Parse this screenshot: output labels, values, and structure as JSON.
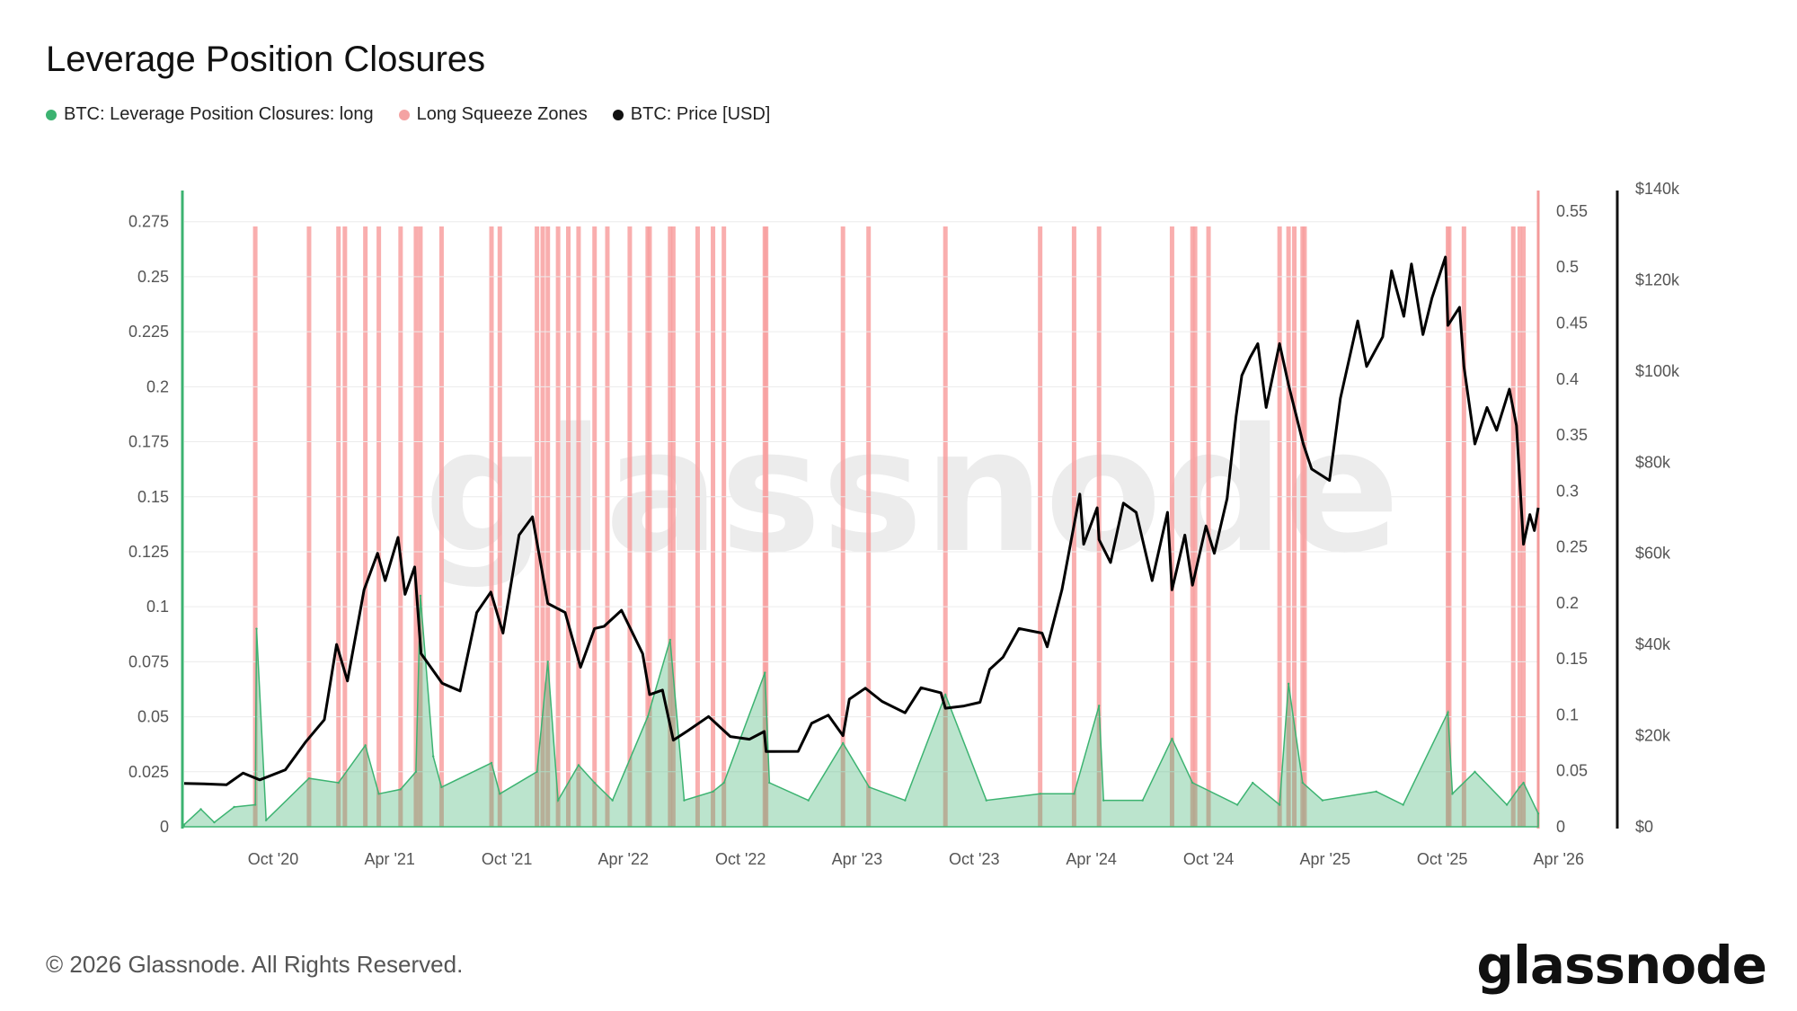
{
  "title": "Leverage Position Closures",
  "legend": [
    {
      "label": "BTC: Leverage Position Closures: long",
      "color": "#3cb371"
    },
    {
      "label": "Long Squeeze Zones",
      "color": "#f4a3a3"
    },
    {
      "label": "BTC: Price [USD]",
      "color": "#111111"
    }
  ],
  "watermark": "glassnode",
  "copyright": "© 2026 Glassnode. All Rights Reserved.",
  "brand": "glassnode",
  "colors": {
    "closures": "#3cb371",
    "squeeze": "#f8a0a0",
    "price": "#000000",
    "axis_left": "#3cb371",
    "axis_mid": "#f39a9a",
    "axis_right": "#111111"
  },
  "chart_data": {
    "type": "line",
    "x_axis": {
      "type": "date",
      "range": [
        "2020-05-15",
        "2026-02-28"
      ],
      "tick_labels": [
        "Oct '20",
        "Apr '21",
        "Oct '21",
        "Apr '22",
        "Oct '22",
        "Apr '23",
        "Oct '23",
        "Apr '24",
        "Oct '24",
        "Apr '25",
        "Oct '25",
        "Apr '26"
      ],
      "tick_dates": [
        "2020-10-01",
        "2021-04-01",
        "2021-10-01",
        "2022-04-01",
        "2022-10-01",
        "2023-04-01",
        "2023-10-01",
        "2024-04-01",
        "2024-10-01",
        "2025-04-01",
        "2025-10-01",
        "2026-04-01"
      ]
    },
    "y_left": {
      "range": [
        0,
        0.29
      ],
      "ticks": [
        "0",
        "0.025",
        "0.05",
        "0.075",
        "0.1",
        "0.125",
        "0.15",
        "0.175",
        "0.2",
        "0.225",
        "0.25",
        "0.275"
      ],
      "tick_values": [
        0,
        0.025,
        0.05,
        0.075,
        0.1,
        0.125,
        0.15,
        0.175,
        0.2,
        0.225,
        0.25,
        0.275
      ]
    },
    "y_mid": {
      "range": [
        0,
        0.57
      ],
      "ticks": [
        "0",
        "0.05",
        "0.1",
        "0.15",
        "0.2",
        "0.25",
        "0.3",
        "0.35",
        "0.4",
        "0.45",
        "0.5",
        "0.55"
      ],
      "tick_values": [
        0,
        0.05,
        0.1,
        0.15,
        0.2,
        0.25,
        0.3,
        0.35,
        0.4,
        0.45,
        0.5,
        0.55
      ]
    },
    "y_right": {
      "range": [
        0,
        140000
      ],
      "ticks": [
        "$0",
        "$20k",
        "$40k",
        "$60k",
        "$80k",
        "$100k",
        "$120k",
        "$140k"
      ],
      "tick_values": [
        0,
        20000,
        40000,
        60000,
        80000,
        100000,
        120000,
        140000
      ]
    },
    "series": [
      {
        "name": "BTC: Leverage Position Closures: long",
        "axis": "left",
        "style": "area",
        "points": [
          [
            "2020-05-15",
            0.001
          ],
          [
            "2020-06-10",
            0.008
          ],
          [
            "2020-07-01",
            0.002
          ],
          [
            "2020-08-01",
            0.009
          ],
          [
            "2020-09-03",
            0.01
          ],
          [
            "2020-09-05",
            0.09
          ],
          [
            "2020-09-20",
            0.003
          ],
          [
            "2020-11-26",
            0.022
          ],
          [
            "2021-01-11",
            0.02
          ],
          [
            "2021-02-22",
            0.037
          ],
          [
            "2021-03-15",
            0.015
          ],
          [
            "2021-04-18",
            0.017
          ],
          [
            "2021-05-12",
            0.025
          ],
          [
            "2021-05-19",
            0.105
          ],
          [
            "2021-06-08",
            0.032
          ],
          [
            "2021-06-21",
            0.018
          ],
          [
            "2021-09-07",
            0.029
          ],
          [
            "2021-09-20",
            0.015
          ],
          [
            "2021-11-17",
            0.025
          ],
          [
            "2021-12-04",
            0.075
          ],
          [
            "2021-12-20",
            0.012
          ],
          [
            "2022-01-21",
            0.028
          ],
          [
            "2022-02-15",
            0.02
          ],
          [
            "2022-03-15",
            0.012
          ],
          [
            "2022-05-09",
            0.05
          ],
          [
            "2022-06-13",
            0.085
          ],
          [
            "2022-07-05",
            0.012
          ],
          [
            "2022-08-19",
            0.016
          ],
          [
            "2022-09-05",
            0.02
          ],
          [
            "2022-11-08",
            0.07
          ],
          [
            "2022-11-15",
            0.02
          ],
          [
            "2023-01-15",
            0.012
          ],
          [
            "2023-03-10",
            0.038
          ],
          [
            "2023-04-20",
            0.018
          ],
          [
            "2023-06-15",
            0.012
          ],
          [
            "2023-08-17",
            0.06
          ],
          [
            "2023-10-20",
            0.012
          ],
          [
            "2024-01-12",
            0.015
          ],
          [
            "2024-03-05",
            0.015
          ],
          [
            "2024-04-13",
            0.055
          ],
          [
            "2024-04-20",
            0.012
          ],
          [
            "2024-06-20",
            0.012
          ],
          [
            "2024-08-05",
            0.04
          ],
          [
            "2024-09-06",
            0.02
          ],
          [
            "2024-11-15",
            0.01
          ],
          [
            "2024-12-09",
            0.02
          ],
          [
            "2025-01-20",
            0.01
          ],
          [
            "2025-02-03",
            0.065
          ],
          [
            "2025-02-25",
            0.02
          ],
          [
            "2025-03-28",
            0.012
          ],
          [
            "2025-06-20",
            0.016
          ],
          [
            "2025-08-01",
            0.01
          ],
          [
            "2025-10-10",
            0.052
          ],
          [
            "2025-10-17",
            0.015
          ],
          [
            "2025-11-21",
            0.025
          ],
          [
            "2026-01-10",
            0.01
          ],
          [
            "2026-01-30",
            0.018
          ],
          [
            "2026-02-05",
            0.02
          ],
          [
            "2026-02-28",
            0.006
          ]
        ]
      },
      {
        "name": "BTC: Price [USD]",
        "axis": "right",
        "style": "line",
        "points": [
          [
            "2020-05-15",
            9500
          ],
          [
            "2020-06-15",
            9400
          ],
          [
            "2020-07-20",
            9200
          ],
          [
            "2020-08-15",
            11800
          ],
          [
            "2020-09-10",
            10300
          ],
          [
            "2020-10-20",
            12500
          ],
          [
            "2020-11-20",
            18500
          ],
          [
            "2020-12-20",
            23500
          ],
          [
            "2021-01-08",
            40000
          ],
          [
            "2021-01-25",
            32000
          ],
          [
            "2021-02-20",
            52000
          ],
          [
            "2021-03-13",
            60000
          ],
          [
            "2021-03-25",
            54000
          ],
          [
            "2021-04-14",
            63500
          ],
          [
            "2021-04-25",
            51000
          ],
          [
            "2021-05-10",
            57000
          ],
          [
            "2021-05-20",
            38000
          ],
          [
            "2021-06-22",
            31500
          ],
          [
            "2021-07-20",
            29800
          ],
          [
            "2021-08-15",
            47000
          ],
          [
            "2021-09-06",
            51500
          ],
          [
            "2021-09-25",
            42500
          ],
          [
            "2021-10-20",
            64000
          ],
          [
            "2021-11-10",
            68000
          ],
          [
            "2021-12-04",
            49000
          ],
          [
            "2021-12-31",
            47000
          ],
          [
            "2022-01-24",
            35000
          ],
          [
            "2022-02-15",
            43500
          ],
          [
            "2022-03-02",
            44000
          ],
          [
            "2022-03-29",
            47500
          ],
          [
            "2022-05-01",
            38000
          ],
          [
            "2022-05-12",
            29000
          ],
          [
            "2022-06-01",
            30000
          ],
          [
            "2022-06-18",
            19000
          ],
          [
            "2022-07-10",
            21000
          ],
          [
            "2022-08-12",
            24200
          ],
          [
            "2022-09-15",
            19800
          ],
          [
            "2022-10-15",
            19200
          ],
          [
            "2022-11-07",
            20900
          ],
          [
            "2022-11-10",
            16500
          ],
          [
            "2022-12-30",
            16550
          ],
          [
            "2023-01-20",
            22700
          ],
          [
            "2023-02-15",
            24500
          ],
          [
            "2023-03-10",
            20000
          ],
          [
            "2023-03-20",
            28000
          ],
          [
            "2023-04-14",
            30400
          ],
          [
            "2023-05-10",
            27500
          ],
          [
            "2023-06-15",
            25000
          ],
          [
            "2023-07-10",
            30500
          ],
          [
            "2023-08-10",
            29400
          ],
          [
            "2023-08-17",
            26000
          ],
          [
            "2023-09-15",
            26500
          ],
          [
            "2023-10-10",
            27300
          ],
          [
            "2023-10-25",
            34500
          ],
          [
            "2023-11-15",
            37200
          ],
          [
            "2023-12-10",
            43500
          ],
          [
            "2024-01-15",
            42500
          ],
          [
            "2024-01-23",
            39500
          ],
          [
            "2024-02-15",
            52000
          ],
          [
            "2024-03-14",
            73000
          ],
          [
            "2024-03-20",
            62000
          ],
          [
            "2024-04-10",
            70000
          ],
          [
            "2024-04-13",
            63000
          ],
          [
            "2024-05-01",
            58000
          ],
          [
            "2024-05-21",
            71000
          ],
          [
            "2024-06-10",
            69000
          ],
          [
            "2024-07-05",
            54000
          ],
          [
            "2024-07-29",
            69000
          ],
          [
            "2024-08-05",
            52000
          ],
          [
            "2024-08-25",
            64000
          ],
          [
            "2024-09-06",
            53000
          ],
          [
            "2024-09-27",
            66000
          ],
          [
            "2024-10-10",
            60000
          ],
          [
            "2024-10-30",
            72000
          ],
          [
            "2024-11-13",
            90000
          ],
          [
            "2024-11-22",
            99000
          ],
          [
            "2024-12-05",
            103000
          ],
          [
            "2024-12-17",
            106000
          ],
          [
            "2024-12-30",
            92000
          ],
          [
            "2025-01-20",
            106000
          ],
          [
            "2025-02-03",
            97000
          ],
          [
            "2025-02-26",
            84000
          ],
          [
            "2025-03-11",
            78500
          ],
          [
            "2025-04-08",
            76000
          ],
          [
            "2025-04-25",
            94000
          ],
          [
            "2025-05-22",
            111000
          ],
          [
            "2025-06-05",
            101000
          ],
          [
            "2025-06-30",
            107500
          ],
          [
            "2025-07-14",
            122000
          ],
          [
            "2025-08-02",
            112000
          ],
          [
            "2025-08-14",
            123500
          ],
          [
            "2025-09-01",
            108000
          ],
          [
            "2025-09-15",
            116000
          ],
          [
            "2025-10-06",
            125000
          ],
          [
            "2025-10-10",
            110000
          ],
          [
            "2025-10-28",
            114000
          ],
          [
            "2025-11-04",
            101000
          ],
          [
            "2025-11-21",
            84000
          ],
          [
            "2025-12-10",
            92000
          ],
          [
            "2025-12-25",
            87000
          ],
          [
            "2026-01-14",
            96000
          ],
          [
            "2026-01-25",
            88000
          ],
          [
            "2026-02-05",
            62000
          ],
          [
            "2026-02-15",
            68500
          ],
          [
            "2026-02-22",
            65000
          ],
          [
            "2026-02-28",
            70000
          ]
        ]
      }
    ],
    "long_squeeze_zones": [
      "2020-09-03",
      "2020-11-26",
      "2021-01-11",
      "2021-01-21",
      "2021-02-22",
      "2021-03-15",
      "2021-04-18",
      "2021-05-12",
      "2021-05-19",
      "2021-06-21",
      "2021-09-07",
      "2021-09-20",
      "2021-11-17",
      "2021-11-26",
      "2021-12-04",
      "2021-12-20",
      "2022-01-05",
      "2022-01-21",
      "2022-02-15",
      "2022-03-07",
      "2022-04-11",
      "2022-05-09",
      "2022-05-12",
      "2022-06-13",
      "2022-06-18",
      "2022-07-26",
      "2022-08-19",
      "2022-09-05",
      "2022-11-08",
      "2022-11-10",
      "2023-03-10",
      "2023-04-19",
      "2023-08-17",
      "2024-01-12",
      "2024-03-05",
      "2024-04-13",
      "2024-08-05",
      "2024-09-06",
      "2024-09-10",
      "2024-10-01",
      "2025-01-20",
      "2025-02-03",
      "2025-02-12",
      "2025-02-25",
      "2025-02-28",
      "2025-10-10",
      "2025-10-12",
      "2025-11-04",
      "2026-01-20",
      "2026-01-30",
      "2026-02-05"
    ]
  }
}
